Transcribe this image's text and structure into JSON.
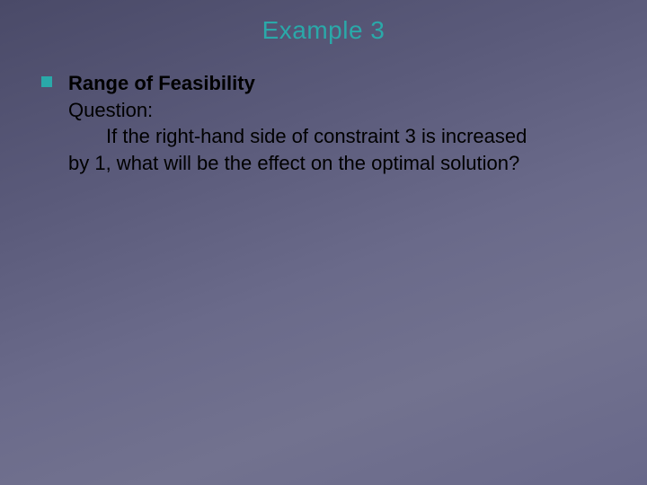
{
  "slide": {
    "title": "Example 3",
    "title_color": "#2aa9a9",
    "background_gradient": [
      "#4a4a68",
      "#72728f"
    ],
    "bullet_color": "#2aa9a9",
    "text_color": "#000000",
    "title_fontsize": 28,
    "body_fontsize": 22,
    "body": {
      "heading": "Range of Feasibility",
      "label": "Question:",
      "line1": "If the right-hand side of constraint 3 is increased",
      "line2": "by 1, what will be the effect on the optimal solution?"
    }
  }
}
